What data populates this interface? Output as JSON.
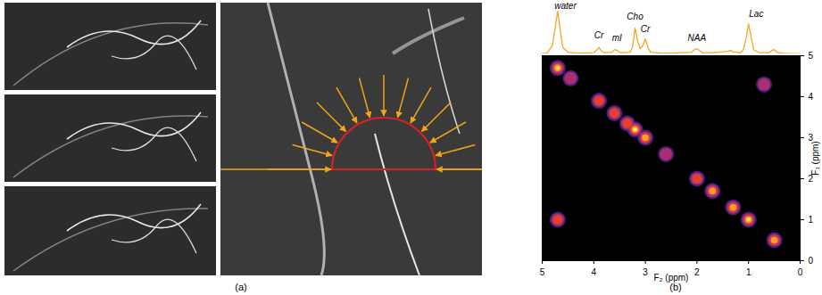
{
  "panel_labels": [
    "(a)",
    "(b)"
  ],
  "chart_data": {
    "type": "contour",
    "x_label": "F₂ (ppm)",
    "y_label": "F₁ (ppm)",
    "xlim": [
      5,
      0
    ],
    "ylim": [
      0,
      5
    ],
    "xticks": [
      5,
      4,
      3,
      2,
      1,
      0
    ],
    "yticks": [
      0,
      1,
      2,
      3,
      4,
      5
    ],
    "peaks": {
      "f2": [
        4.7,
        4.45,
        3.9,
        3.6,
        3.35,
        3.2,
        3.0,
        2.6,
        2.0,
        1.7,
        1.3,
        1.0,
        0.5,
        4.7,
        0.7
      ],
      "f1": [
        4.7,
        4.45,
        3.9,
        3.6,
        3.35,
        3.2,
        3.0,
        2.6,
        2.0,
        1.7,
        1.3,
        1.0,
        0.5,
        1.0,
        4.3
      ],
      "intensity": [
        1.0,
        0.4,
        0.6,
        0.6,
        0.5,
        0.9,
        0.8,
        0.3,
        0.5,
        0.7,
        0.8,
        1.0,
        0.7,
        0.5,
        0.3
      ]
    },
    "spectrum": {
      "color": "#f5a623",
      "x": [
        5.0,
        4.9,
        4.8,
        4.75,
        4.7,
        4.65,
        4.6,
        4.5,
        4.3,
        4.0,
        3.95,
        3.9,
        3.85,
        3.8,
        3.65,
        3.6,
        3.55,
        3.5,
        3.45,
        3.3,
        3.25,
        3.2,
        3.15,
        3.1,
        3.05,
        3.0,
        2.95,
        2.9,
        2.7,
        2.5,
        2.1,
        2.05,
        2.0,
        1.95,
        1.9,
        1.7,
        1.5,
        1.4,
        1.35,
        1.3,
        1.15,
        1.1,
        1.05,
        1.0,
        0.95,
        0.9,
        0.8,
        0.6,
        0.55,
        0.5,
        0.45,
        0.3,
        0.0
      ],
      "values": [
        0.01,
        0.03,
        0.2,
        0.6,
        1.0,
        0.55,
        0.15,
        0.04,
        0.02,
        0.03,
        0.08,
        0.15,
        0.07,
        0.03,
        0.04,
        0.1,
        0.08,
        0.04,
        0.03,
        0.04,
        0.15,
        0.6,
        0.3,
        0.12,
        0.2,
        0.35,
        0.15,
        0.04,
        0.02,
        0.02,
        0.04,
        0.1,
        0.12,
        0.08,
        0.03,
        0.03,
        0.05,
        0.06,
        0.08,
        0.05,
        0.03,
        0.1,
        0.35,
        0.7,
        0.4,
        0.1,
        0.03,
        0.03,
        0.08,
        0.1,
        0.04,
        0.01,
        0.0
      ]
    },
    "annotations": [
      {
        "text": "water",
        "x": 4.55,
        "y": 1.0
      },
      {
        "text": "Cr",
        "x": 3.9,
        "y": 0.3
      },
      {
        "text": "mI",
        "x": 3.55,
        "y": 0.25
      },
      {
        "text": "Cho",
        "x": 3.2,
        "y": 0.75
      },
      {
        "text": "Cr",
        "x": 3.0,
        "y": 0.45
      },
      {
        "text": "NAA",
        "x": 2.0,
        "y": 0.25
      },
      {
        "text": "Lac",
        "x": 0.85,
        "y": 0.8
      }
    ]
  }
}
